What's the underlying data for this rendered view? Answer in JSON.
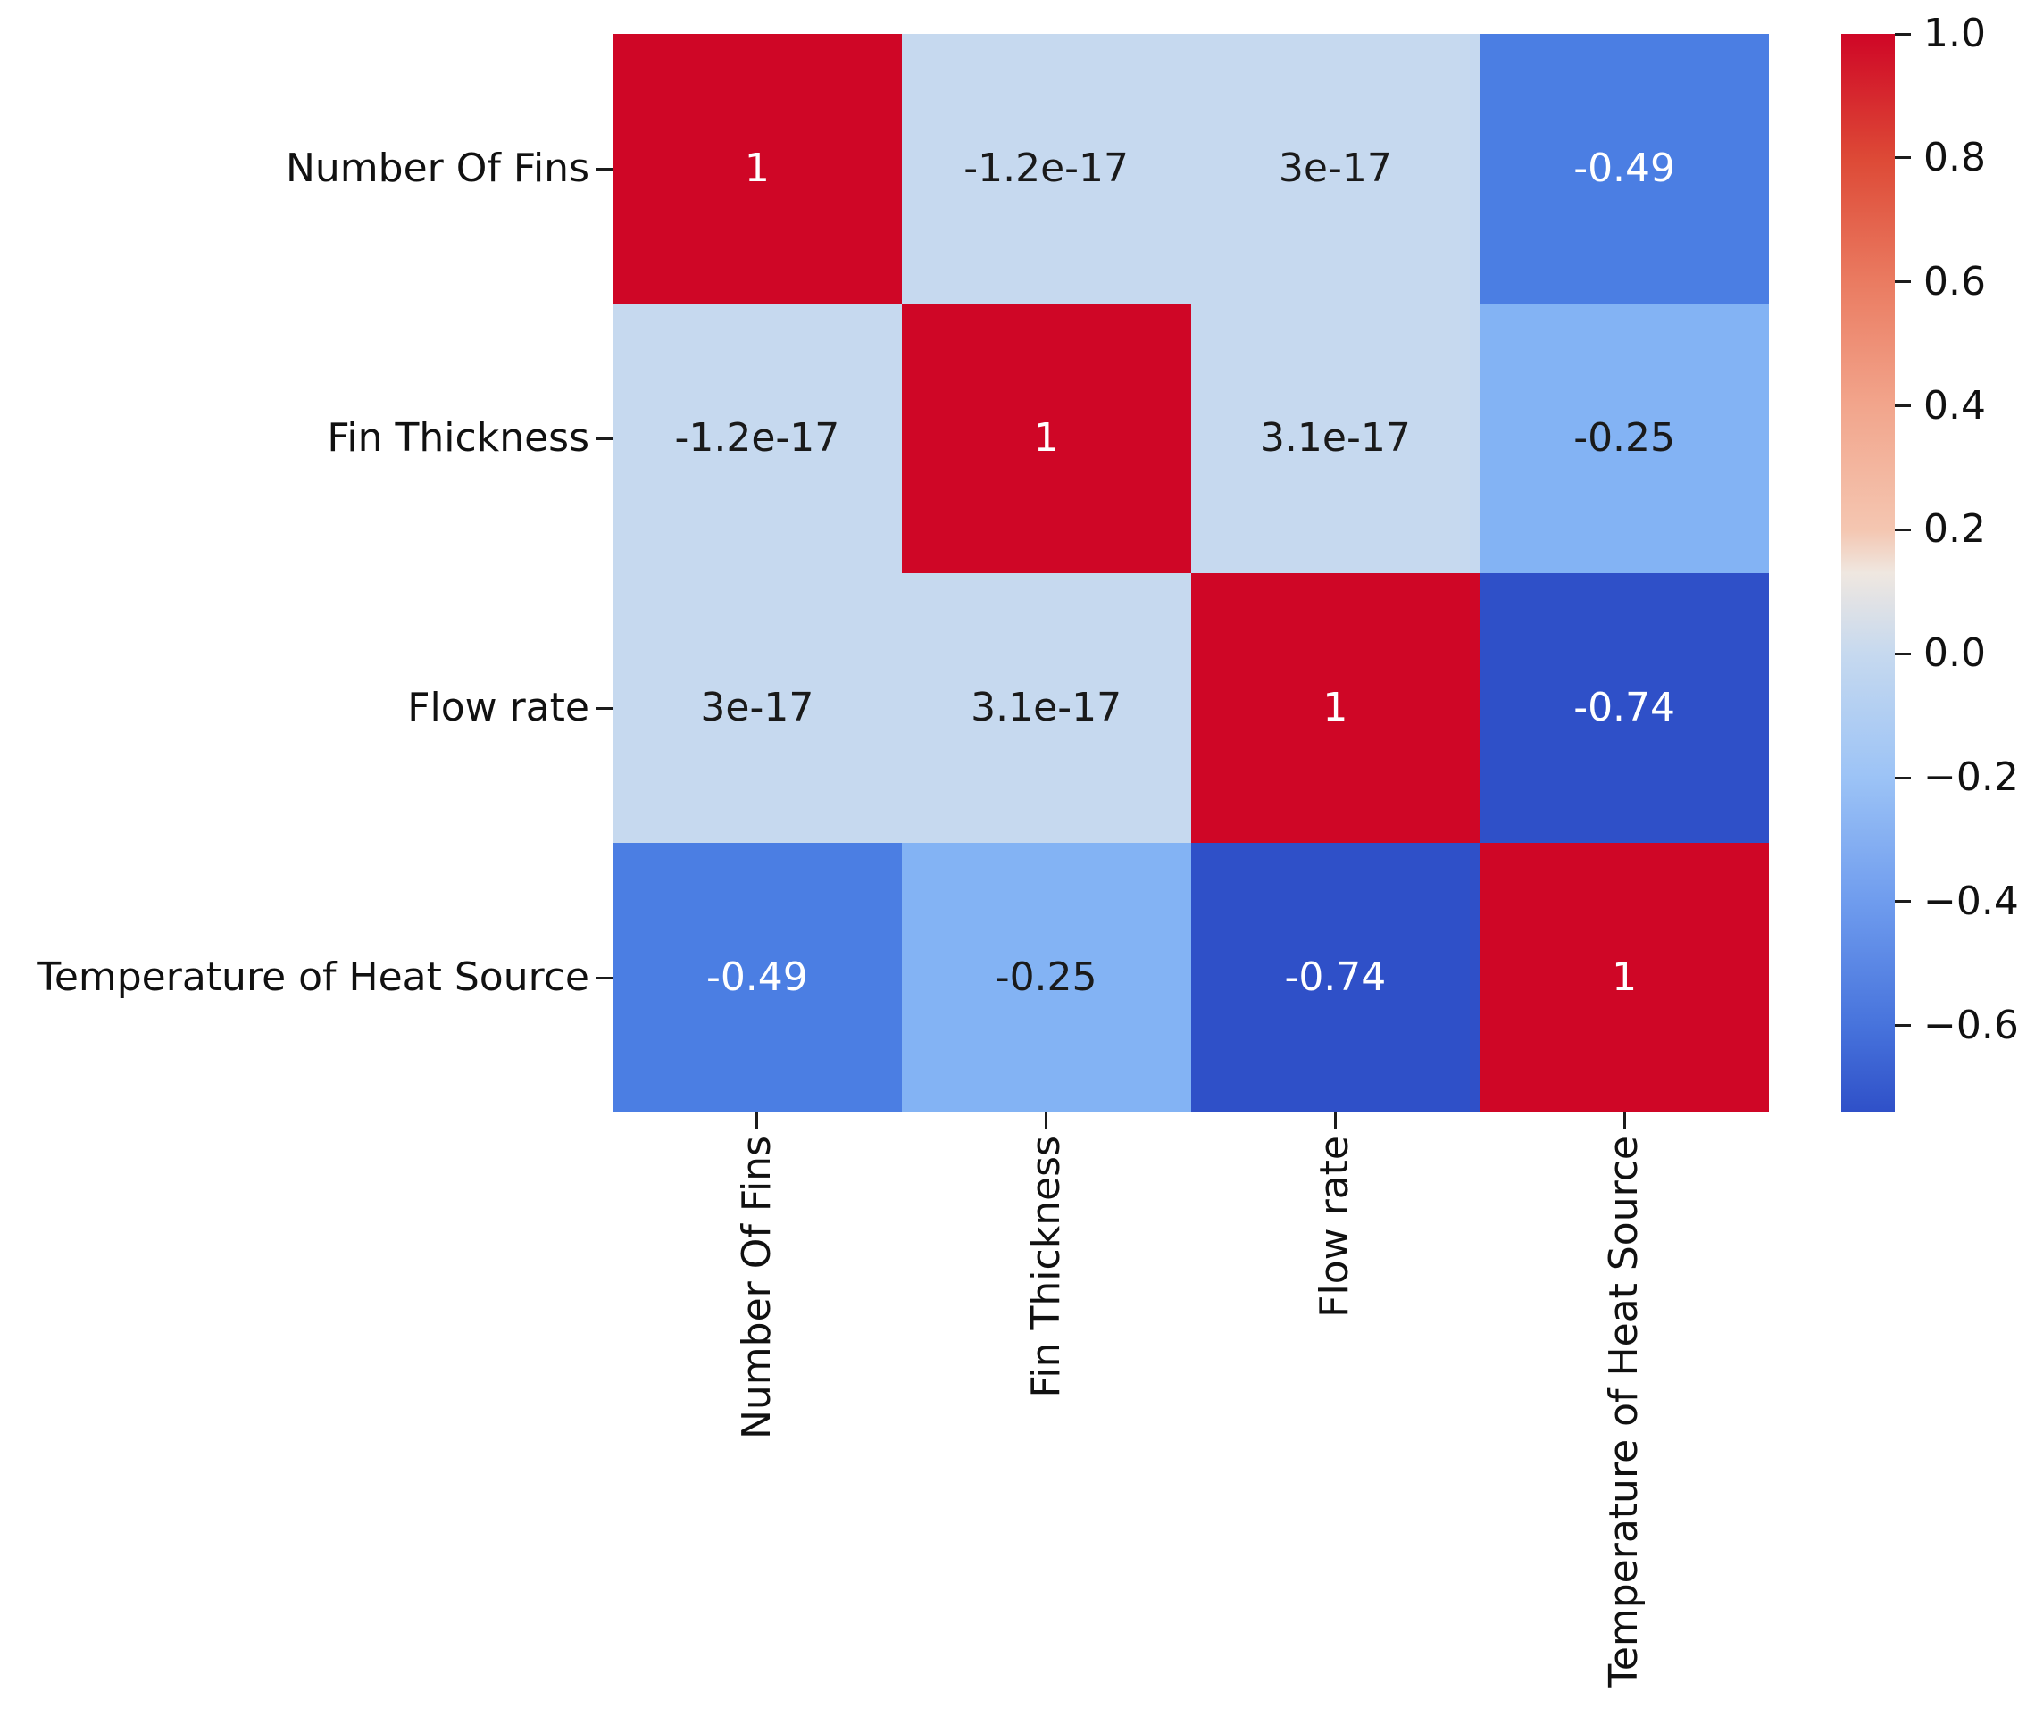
{
  "figure": {
    "background": "#ffffff",
    "text_color": "#111111",
    "tick_color": "#1c1c1c"
  },
  "chart_data": {
    "type": "heatmap",
    "title": "",
    "xlabel": "",
    "ylabel": "",
    "x_tick_labels": [
      "Number Of Fins",
      "Fin Thickness",
      "Flow rate",
      "Temperature of Heat Source"
    ],
    "y_tick_labels": [
      "Number Of Fins",
      "Fin Thickness",
      "Flow rate",
      "Temperature of Heat Source"
    ],
    "values": [
      [
        1,
        -1.2e-17,
        3e-17,
        -0.49
      ],
      [
        -1.2e-17,
        1,
        3.1e-17,
        -0.25
      ],
      [
        3e-17,
        3.1e-17,
        1,
        -0.74
      ],
      [
        -0.49,
        -0.25,
        -0.74,
        1
      ]
    ],
    "cell_labels": [
      [
        "1",
        "-1.2e-17",
        "3e-17",
        "-0.49"
      ],
      [
        "-1.2e-17",
        "1",
        "3.1e-17",
        "-0.25"
      ],
      [
        "3e-17",
        "3.1e-17",
        "1",
        "-0.74"
      ],
      [
        "-0.49",
        "-0.25",
        "-0.74",
        "1"
      ]
    ],
    "cell_colors": [
      [
        "#cf0626",
        "#c6d9ef",
        "#c6d9ef",
        "#4b7ee3"
      ],
      [
        "#c6d9ef",
        "#cf0626",
        "#c6d9ef",
        "#83b3f4"
      ],
      [
        "#c6d9ef",
        "#c6d9ef",
        "#cf0626",
        "#2f50c8"
      ],
      [
        "#4b7ee3",
        "#83b3f4",
        "#2f50c8",
        "#cf0626"
      ]
    ],
    "cell_text_colors": [
      [
        "#ffffff",
        "#1a1a1a",
        "#1a1a1a",
        "#ffffff"
      ],
      [
        "#1a1a1a",
        "#ffffff",
        "#1a1a1a",
        "#1a1a1a"
      ],
      [
        "#1a1a1a",
        "#1a1a1a",
        "#ffffff",
        "#ffffff"
      ],
      [
        "#ffffff",
        "#1a1a1a",
        "#ffffff",
        "#ffffff"
      ]
    ],
    "colorbar": {
      "position": "right",
      "vmin": -0.74,
      "vmax": 1.0,
      "tick_labels": [
        "1.0",
        "0.8",
        "0.6",
        "0.4",
        "0.2",
        "0.0",
        "−0.2",
        "−0.4",
        "−0.6"
      ],
      "tick_values": [
        1.0,
        0.8,
        0.6,
        0.4,
        0.2,
        0.0,
        -0.2,
        -0.4,
        -0.6
      ],
      "gradient": [
        {
          "v": 1.0,
          "c": "#cf0626"
        },
        {
          "v": 0.8,
          "c": "#dd4936"
        },
        {
          "v": 0.6,
          "c": "#ea7b61"
        },
        {
          "v": 0.4,
          "c": "#f2a58c"
        },
        {
          "v": 0.2,
          "c": "#f4c6b1"
        },
        {
          "v": 0.13,
          "c": "#efe7e0"
        },
        {
          "v": 0.0,
          "c": "#c6d9ef"
        },
        {
          "v": -0.2,
          "c": "#9cc3f6"
        },
        {
          "v": -0.4,
          "c": "#6f9cee"
        },
        {
          "v": -0.6,
          "c": "#4773dc"
        },
        {
          "v": -0.74,
          "c": "#2f50c8"
        }
      ]
    },
    "legend": null,
    "grid": false
  }
}
